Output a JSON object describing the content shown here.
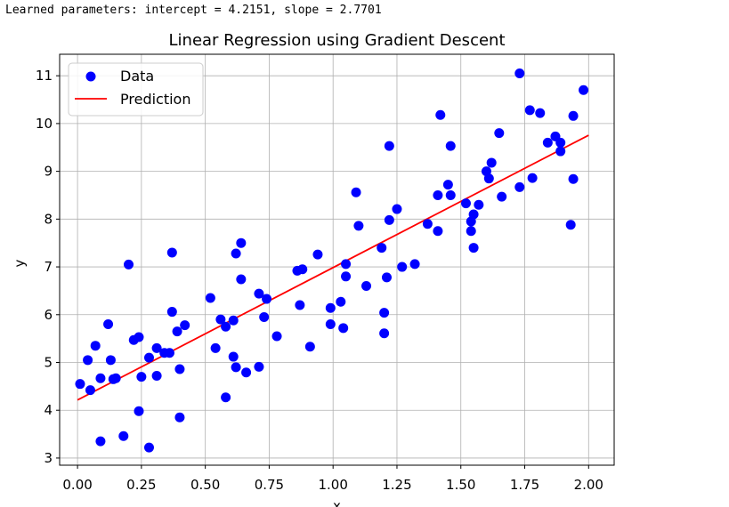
{
  "console_output": "Learned parameters: intercept = 4.2151, slope = 2.7701",
  "chart_data": {
    "type": "scatter",
    "title": "Linear Regression using Gradient Descent",
    "xlabel": "x",
    "ylabel": "y",
    "xlim": [
      -0.07,
      2.1
    ],
    "ylim": [
      2.85,
      11.45
    ],
    "xticks": [
      0.0,
      0.25,
      0.5,
      0.75,
      1.0,
      1.25,
      1.5,
      1.75,
      2.0
    ],
    "xtick_labels": [
      "0.00",
      "0.25",
      "0.50",
      "0.75",
      "1.00",
      "1.25",
      "1.50",
      "1.75",
      "2.00"
    ],
    "yticks": [
      3,
      4,
      5,
      6,
      7,
      8,
      9,
      10,
      11
    ],
    "ytick_labels": [
      "3",
      "4",
      "5",
      "6",
      "7",
      "8",
      "9",
      "10",
      "11"
    ],
    "grid": true,
    "legend_position": "top-left",
    "series": [
      {
        "name": "Data",
        "kind": "scatter",
        "color": "#0000ff",
        "points": [
          [
            0.01,
            4.55
          ],
          [
            0.04,
            5.05
          ],
          [
            0.05,
            4.42
          ],
          [
            0.07,
            5.35
          ],
          [
            0.09,
            3.35
          ],
          [
            0.09,
            4.67
          ],
          [
            0.12,
            5.8
          ],
          [
            0.13,
            5.05
          ],
          [
            0.14,
            4.65
          ],
          [
            0.15,
            4.67
          ],
          [
            0.18,
            3.46
          ],
          [
            0.2,
            7.05
          ],
          [
            0.22,
            5.47
          ],
          [
            0.24,
            3.98
          ],
          [
            0.24,
            5.53
          ],
          [
            0.25,
            4.7
          ],
          [
            0.28,
            5.1
          ],
          [
            0.28,
            3.22
          ],
          [
            0.31,
            5.3
          ],
          [
            0.31,
            4.72
          ],
          [
            0.34,
            5.2
          ],
          [
            0.36,
            5.2
          ],
          [
            0.37,
            6.06
          ],
          [
            0.37,
            7.3
          ],
          [
            0.39,
            5.65
          ],
          [
            0.4,
            4.86
          ],
          [
            0.4,
            3.85
          ],
          [
            0.42,
            5.78
          ],
          [
            0.52,
            6.35
          ],
          [
            0.54,
            5.3
          ],
          [
            0.56,
            5.9
          ],
          [
            0.58,
            5.75
          ],
          [
            0.58,
            4.27
          ],
          [
            0.61,
            5.88
          ],
          [
            0.61,
            5.12
          ],
          [
            0.62,
            4.9
          ],
          [
            0.62,
            7.28
          ],
          [
            0.64,
            7.5
          ],
          [
            0.64,
            6.74
          ],
          [
            0.66,
            4.79
          ],
          [
            0.71,
            4.91
          ],
          [
            0.71,
            6.44
          ],
          [
            0.73,
            5.95
          ],
          [
            0.74,
            6.33
          ],
          [
            0.78,
            5.55
          ],
          [
            0.86,
            6.92
          ],
          [
            0.87,
            6.2
          ],
          [
            0.88,
            6.95
          ],
          [
            0.91,
            5.33
          ],
          [
            0.94,
            7.26
          ],
          [
            0.99,
            6.14
          ],
          [
            0.99,
            5.8
          ],
          [
            1.03,
            6.27
          ],
          [
            1.04,
            5.72
          ],
          [
            1.05,
            7.06
          ],
          [
            1.05,
            6.8
          ],
          [
            1.09,
            8.56
          ],
          [
            1.1,
            7.86
          ],
          [
            1.13,
            6.6
          ],
          [
            1.19,
            7.4
          ],
          [
            1.2,
            6.04
          ],
          [
            1.2,
            5.61
          ],
          [
            1.21,
            6.78
          ],
          [
            1.22,
            9.53
          ],
          [
            1.22,
            7.98
          ],
          [
            1.25,
            8.21
          ],
          [
            1.27,
            7.0
          ],
          [
            1.32,
            7.06
          ],
          [
            1.37,
            7.9
          ],
          [
            1.41,
            8.5
          ],
          [
            1.41,
            7.75
          ],
          [
            1.42,
            10.18
          ],
          [
            1.45,
            8.72
          ],
          [
            1.46,
            8.5
          ],
          [
            1.46,
            9.53
          ],
          [
            1.52,
            8.33
          ],
          [
            1.54,
            7.75
          ],
          [
            1.54,
            7.95
          ],
          [
            1.55,
            8.1
          ],
          [
            1.55,
            7.4
          ],
          [
            1.57,
            8.3
          ],
          [
            1.6,
            9.0
          ],
          [
            1.61,
            8.85
          ],
          [
            1.62,
            9.18
          ],
          [
            1.65,
            9.8
          ],
          [
            1.66,
            8.47
          ],
          [
            1.73,
            11.05
          ],
          [
            1.73,
            8.67
          ],
          [
            1.77,
            10.28
          ],
          [
            1.78,
            8.86
          ],
          [
            1.81,
            10.22
          ],
          [
            1.84,
            9.6
          ],
          [
            1.87,
            9.73
          ],
          [
            1.89,
            9.6
          ],
          [
            1.89,
            9.42
          ],
          [
            1.93,
            7.88
          ],
          [
            1.94,
            10.16
          ],
          [
            1.94,
            8.84
          ],
          [
            1.98,
            10.7
          ]
        ]
      },
      {
        "name": "Prediction",
        "kind": "line",
        "color": "#ff0000",
        "x": [
          0.0,
          2.0
        ],
        "y": [
          4.2151,
          9.7553
        ]
      }
    ]
  }
}
